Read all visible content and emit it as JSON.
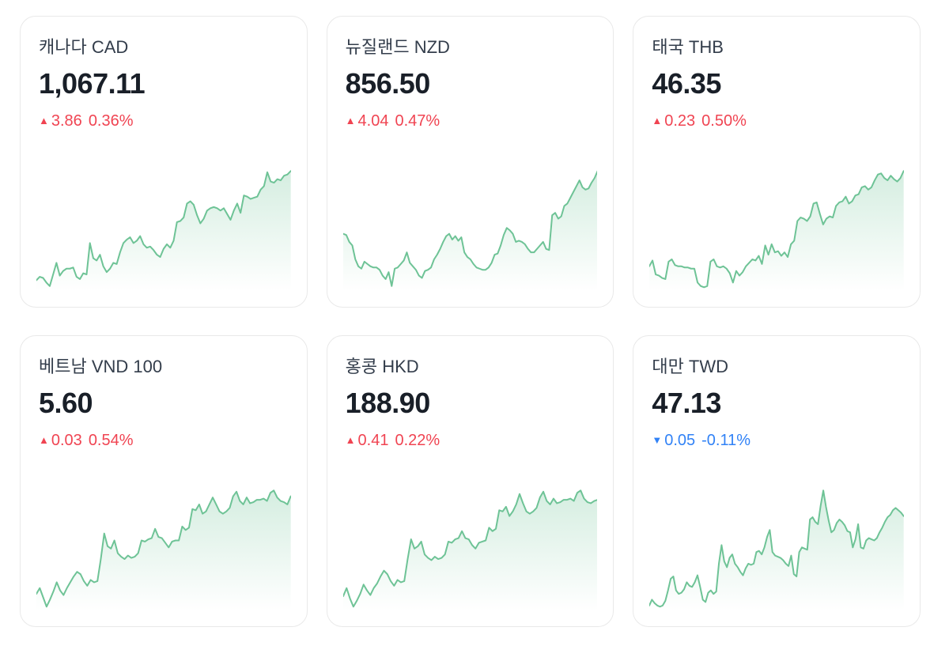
{
  "page": {
    "background": "#ffffff"
  },
  "colors": {
    "up": "#f04452",
    "down": "#3182f6",
    "line": "#6ec396",
    "fill_top": "rgba(110,195,150,0.30)",
    "fill_bottom": "rgba(110,195,150,0)",
    "card_border": "#e9e9e9",
    "title_text": "#333d4b",
    "value_text": "#191f28"
  },
  "cards": [
    {
      "title": "캐나다 CAD",
      "value": "1,067.11",
      "arrow": "▲",
      "change": "3.86",
      "change_pct": "0.36%",
      "direction": "up"
    },
    {
      "title": "뉴질랜드 NZD",
      "value": "856.50",
      "arrow": "▲",
      "change": "4.04",
      "change_pct": "0.47%",
      "direction": "up"
    },
    {
      "title": "태국 THB",
      "value": "46.35",
      "arrow": "▲",
      "change": "0.23",
      "change_pct": "0.50%",
      "direction": "up"
    },
    {
      "title": "베트남 VND 100",
      "value": "5.60",
      "arrow": "▲",
      "change": "0.03",
      "change_pct": "0.54%",
      "direction": "up"
    },
    {
      "title": "홍콩 HKD",
      "value": "188.90",
      "arrow": "▲",
      "change": "0.41",
      "change_pct": "0.22%",
      "direction": "up"
    },
    {
      "title": "대만 TWD",
      "value": "47.13",
      "arrow": "▼",
      "change": "0.05",
      "change_pct": "-0.11%",
      "direction": "down"
    }
  ],
  "chart_data": [
    {
      "type": "area",
      "name": "캐나다 CAD",
      "unit": "normalized 0-100",
      "legend": false,
      "grid": false,
      "values": [
        6,
        9,
        8,
        4,
        1,
        11,
        21,
        10,
        14,
        16,
        16,
        17,
        9,
        7,
        12,
        11,
        38,
        25,
        23,
        28,
        18,
        13,
        16,
        21,
        20,
        30,
        38,
        41,
        43,
        38,
        40,
        44,
        37,
        34,
        35,
        32,
        28,
        26,
        33,
        37,
        34,
        40,
        56,
        57,
        60,
        72,
        74,
        71,
        62,
        55,
        59,
        66,
        68,
        69,
        68,
        66,
        68,
        63,
        58,
        66,
        72,
        64,
        79,
        78,
        76,
        77,
        78,
        84,
        87,
        99,
        91,
        90,
        93,
        92,
        96,
        97,
        100
      ]
    },
    {
      "type": "area",
      "name": "뉴질랜드 NZD",
      "unit": "normalized 0-100",
      "legend": false,
      "grid": false,
      "values": [
        46,
        45,
        39,
        36,
        24,
        18,
        16,
        22,
        20,
        18,
        17,
        17,
        15,
        10,
        7,
        13,
        1,
        16,
        17,
        20,
        23,
        30,
        21,
        18,
        15,
        10,
        8,
        14,
        15,
        17,
        24,
        28,
        33,
        39,
        44,
        46,
        41,
        44,
        40,
        43,
        30,
        26,
        24,
        20,
        17,
        16,
        15,
        15,
        17,
        21,
        28,
        29,
        36,
        45,
        51,
        49,
        46,
        39,
        40,
        39,
        37,
        33,
        30,
        30,
        33,
        36,
        39,
        33,
        32,
        62,
        64,
        59,
        61,
        70,
        72,
        77,
        82,
        87,
        92,
        86,
        84,
        85,
        90,
        94,
        100
      ]
    },
    {
      "type": "area",
      "name": "태국 THB",
      "unit": "normalized 0-100",
      "legend": false,
      "grid": false,
      "values": [
        18,
        23,
        11,
        10,
        8,
        7,
        22,
        24,
        19,
        18,
        18,
        17,
        17,
        16,
        16,
        4,
        1,
        0,
        1,
        22,
        24,
        18,
        17,
        18,
        16,
        12,
        4,
        14,
        10,
        13,
        18,
        21,
        24,
        23,
        27,
        20,
        36,
        28,
        37,
        30,
        31,
        27,
        30,
        26,
        37,
        40,
        57,
        60,
        59,
        57,
        61,
        72,
        73,
        63,
        54,
        59,
        61,
        60,
        70,
        73,
        74,
        78,
        72,
        74,
        79,
        80,
        86,
        87,
        84,
        86,
        92,
        97,
        98,
        94,
        92,
        96,
        93,
        91,
        94,
        100
      ]
    },
    {
      "type": "area",
      "name": "베트남 VND 100",
      "unit": "normalized 0-100",
      "legend": false,
      "grid": false,
      "values": [
        11,
        16,
        8,
        0,
        6,
        13,
        21,
        14,
        10,
        16,
        21,
        26,
        30,
        28,
        22,
        18,
        23,
        21,
        22,
        41,
        63,
        52,
        50,
        57,
        46,
        43,
        41,
        44,
        42,
        43,
        46,
        57,
        56,
        58,
        59,
        67,
        60,
        59,
        55,
        51,
        56,
        57,
        57,
        69,
        66,
        68,
        84,
        83,
        88,
        80,
        82,
        88,
        94,
        88,
        82,
        80,
        82,
        85,
        95,
        99,
        91,
        88,
        94,
        89,
        90,
        92,
        92,
        93,
        91,
        98,
        100,
        94,
        91,
        90,
        88,
        95
      ]
    },
    {
      "type": "area",
      "name": "홍콩 HKD",
      "unit": "normalized 0-100",
      "legend": false,
      "grid": false,
      "values": [
        9,
        16,
        7,
        0,
        5,
        11,
        19,
        14,
        10,
        16,
        20,
        26,
        31,
        28,
        22,
        18,
        23,
        21,
        22,
        41,
        58,
        50,
        52,
        56,
        45,
        42,
        40,
        43,
        41,
        42,
        45,
        56,
        55,
        58,
        59,
        65,
        59,
        58,
        53,
        50,
        55,
        56,
        57,
        68,
        65,
        67,
        83,
        82,
        86,
        78,
        82,
        88,
        97,
        89,
        82,
        80,
        82,
        85,
        94,
        99,
        91,
        88,
        93,
        89,
        90,
        92,
        92,
        93,
        91,
        98,
        100,
        93,
        90,
        89,
        91,
        92
      ]
    },
    {
      "type": "area",
      "name": "대만 TWD",
      "unit": "normalized 0-100",
      "legend": false,
      "grid": false,
      "values": [
        1,
        6,
        3,
        1,
        0,
        1,
        5,
        14,
        24,
        26,
        14,
        11,
        12,
        15,
        21,
        18,
        17,
        21,
        27,
        17,
        6,
        4,
        12,
        14,
        11,
        13,
        37,
        53,
        39,
        34,
        42,
        45,
        37,
        34,
        30,
        27,
        33,
        37,
        36,
        37,
        47,
        48,
        45,
        51,
        60,
        66,
        47,
        44,
        43,
        42,
        40,
        37,
        35,
        44,
        28,
        26,
        47,
        51,
        50,
        49,
        75,
        77,
        73,
        71,
        87,
        100,
        86,
        74,
        64,
        66,
        72,
        75,
        73,
        70,
        65,
        64,
        51,
        58,
        71,
        51,
        50,
        57,
        59,
        58,
        57,
        59,
        64,
        68,
        73,
        77,
        79,
        83,
        85,
        83,
        81,
        78
      ]
    }
  ]
}
